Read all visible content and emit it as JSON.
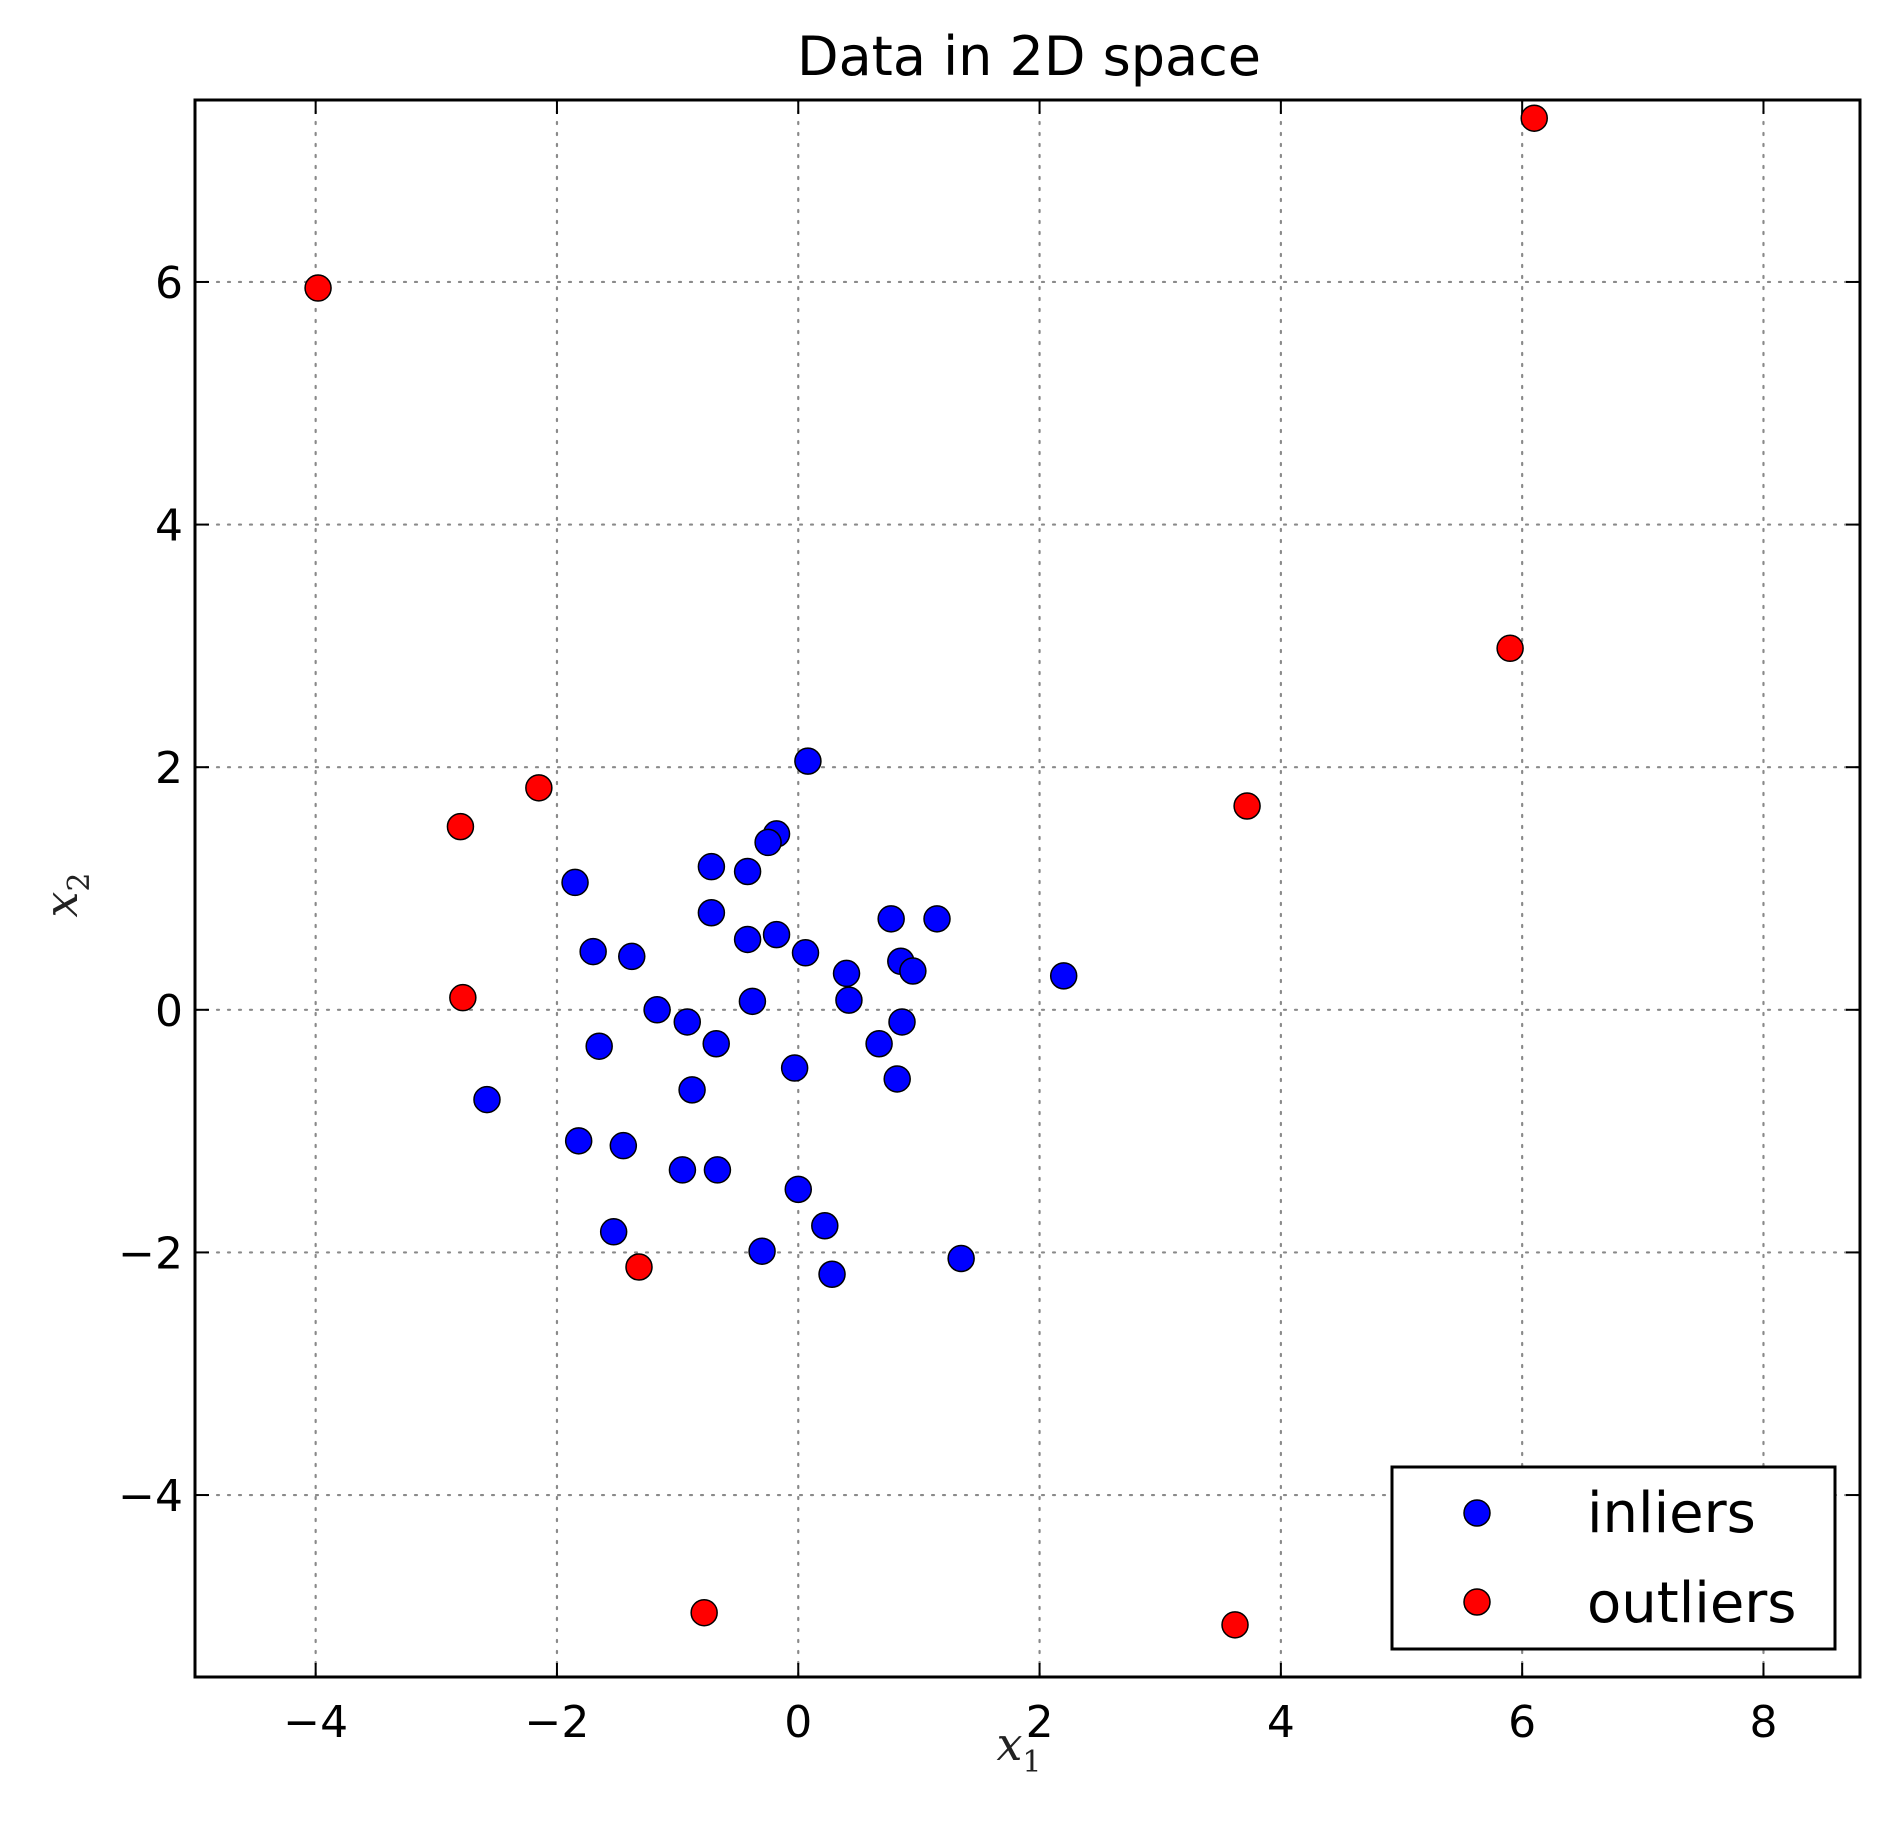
{
  "chart_data": {
    "type": "scatter",
    "title": "Data in 2D space",
    "xlabel": "x",
    "xlabel_sub": "1",
    "ylabel": "x",
    "ylabel_sub": "2",
    "xlim": [
      -5,
      8.8
    ],
    "ylim": [
      -5.5,
      7.5
    ],
    "xticks": [
      -4,
      -2,
      0,
      2,
      4,
      6,
      8
    ],
    "yticks": [
      -4,
      -2,
      0,
      2,
      4,
      6
    ],
    "xtick_labels": [
      "−4",
      "−2",
      "0",
      "2",
      "4",
      "6",
      "8"
    ],
    "ytick_labels": [
      "−4",
      "−2",
      "0",
      "2",
      "4",
      "6"
    ],
    "grid": true,
    "legend_position": "bottom-right",
    "series": [
      {
        "name": "inliers",
        "color": "#0000ff",
        "points": [
          [
            0.08,
            2.05
          ],
          [
            -0.18,
            1.45
          ],
          [
            -0.25,
            1.38
          ],
          [
            -0.72,
            1.18
          ],
          [
            -0.42,
            1.14
          ],
          [
            -1.85,
            1.05
          ],
          [
            -0.72,
            0.8
          ],
          [
            0.77,
            0.75
          ],
          [
            1.15,
            0.75
          ],
          [
            -0.42,
            0.58
          ],
          [
            -0.18,
            0.62
          ],
          [
            -1.7,
            0.48
          ],
          [
            -1.38,
            0.44
          ],
          [
            0.06,
            0.47
          ],
          [
            0.85,
            0.4
          ],
          [
            0.95,
            0.32
          ],
          [
            0.4,
            0.3
          ],
          [
            2.2,
            0.28
          ],
          [
            -0.38,
            0.07
          ],
          [
            0.42,
            0.08
          ],
          [
            -1.17,
            0.0
          ],
          [
            -0.92,
            -0.1
          ],
          [
            0.86,
            -0.1
          ],
          [
            -1.65,
            -0.3
          ],
          [
            -0.68,
            -0.28
          ],
          [
            0.67,
            -0.28
          ],
          [
            -0.03,
            -0.48
          ],
          [
            0.82,
            -0.57
          ],
          [
            -0.88,
            -0.66
          ],
          [
            -2.58,
            -0.74
          ],
          [
            -1.82,
            -1.08
          ],
          [
            -1.45,
            -1.12
          ],
          [
            -0.96,
            -1.32
          ],
          [
            -0.67,
            -1.32
          ],
          [
            0.0,
            -1.48
          ],
          [
            0.22,
            -1.78
          ],
          [
            -1.53,
            -1.83
          ],
          [
            -0.3,
            -1.99
          ],
          [
            1.35,
            -2.05
          ],
          [
            0.28,
            -2.18
          ]
        ]
      },
      {
        "name": "outliers",
        "color": "#ff0000",
        "points": [
          [
            6.1,
            7.35
          ],
          [
            -3.98,
            5.95
          ],
          [
            5.9,
            2.98
          ],
          [
            -2.15,
            1.83
          ],
          [
            3.72,
            1.68
          ],
          [
            -2.8,
            1.51
          ],
          [
            -2.78,
            0.1
          ],
          [
            -1.32,
            -2.12
          ],
          [
            -0.78,
            -4.97
          ],
          [
            3.62,
            -5.07
          ]
        ]
      }
    ]
  }
}
